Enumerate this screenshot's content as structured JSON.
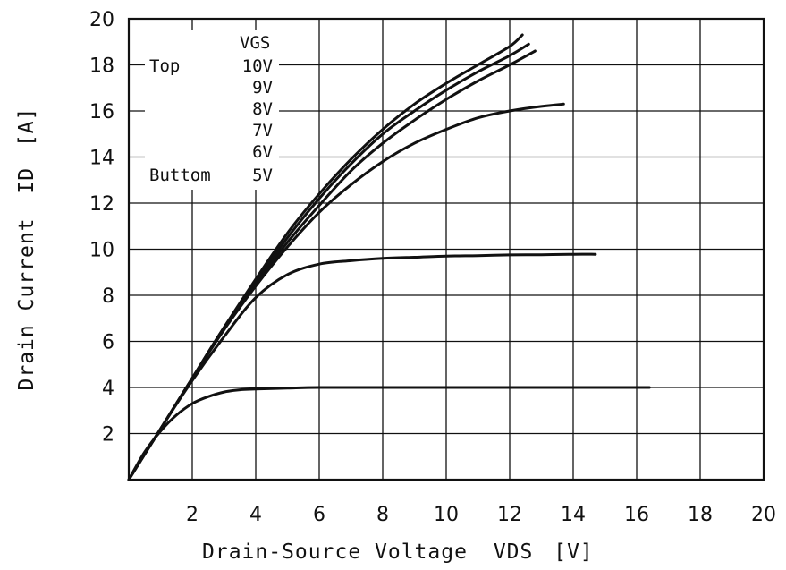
{
  "chart_data": {
    "type": "line",
    "title": "",
    "xlabel": "Drain-Source Voltage",
    "xlabel_sym": "VDS",
    "xlabel_unit": "[V]",
    "ylabel": "Drain Current",
    "ylabel_sym": "ID",
    "ylabel_unit": "[A]",
    "xlim": [
      0,
      20
    ],
    "ylim": [
      0,
      20
    ],
    "x_ticks": [
      2,
      4,
      6,
      8,
      10,
      12,
      14,
      16,
      18,
      20
    ],
    "y_ticks": [
      2,
      4,
      6,
      8,
      10,
      12,
      14,
      16,
      18,
      20
    ],
    "grid": true,
    "legend": {
      "placement": "top-left",
      "header": "VGS",
      "rows": [
        {
          "prefix": "Top",
          "value": "10V"
        },
        {
          "prefix": "",
          "value": "9V"
        },
        {
          "prefix": "",
          "value": "8V"
        },
        {
          "prefix": "",
          "value": "7V"
        },
        {
          "prefix": "",
          "value": "6V"
        },
        {
          "prefix": "Buttom",
          "value": "5V"
        }
      ]
    },
    "series": [
      {
        "points": [
          [
            0,
            0
          ],
          [
            1,
            2.2
          ],
          [
            2,
            4.4
          ],
          [
            3,
            6.6
          ],
          [
            4,
            8.7
          ],
          [
            5,
            10.7
          ],
          [
            6,
            12.4
          ],
          [
            7,
            13.9
          ],
          [
            8,
            15.2
          ],
          [
            9,
            16.3
          ],
          [
            10,
            17.2
          ],
          [
            11,
            18.0
          ],
          [
            12,
            18.8
          ],
          [
            12.4,
            19.3
          ]
        ]
      },
      {
        "points": [
          [
            0,
            0
          ],
          [
            1,
            2.2
          ],
          [
            2,
            4.4
          ],
          [
            3,
            6.6
          ],
          [
            4,
            8.6
          ],
          [
            5,
            10.5
          ],
          [
            6,
            12.2
          ],
          [
            7,
            13.7
          ],
          [
            8,
            15.0
          ],
          [
            9,
            16.0
          ],
          [
            10,
            16.9
          ],
          [
            11,
            17.7
          ],
          [
            12,
            18.4
          ],
          [
            12.6,
            18.9
          ]
        ]
      },
      {
        "points": [
          [
            0,
            0
          ],
          [
            1,
            2.2
          ],
          [
            2,
            4.4
          ],
          [
            3,
            6.6
          ],
          [
            4,
            8.5
          ],
          [
            5,
            10.3
          ],
          [
            6,
            11.9
          ],
          [
            7,
            13.4
          ],
          [
            8,
            14.6
          ],
          [
            9,
            15.6
          ],
          [
            10,
            16.5
          ],
          [
            11,
            17.3
          ],
          [
            12,
            18.0
          ],
          [
            12.8,
            18.6
          ]
        ]
      },
      {
        "points": [
          [
            0,
            0
          ],
          [
            1,
            2.2
          ],
          [
            2,
            4.4
          ],
          [
            3,
            6.5
          ],
          [
            4,
            8.4
          ],
          [
            5,
            10.1
          ],
          [
            6,
            11.6
          ],
          [
            7,
            12.8
          ],
          [
            8,
            13.8
          ],
          [
            9,
            14.6
          ],
          [
            10,
            15.2
          ],
          [
            11,
            15.7
          ],
          [
            12,
            16.0
          ],
          [
            13,
            16.2
          ],
          [
            13.7,
            16.3
          ]
        ]
      },
      {
        "points": [
          [
            0,
            0
          ],
          [
            1,
            2.2
          ],
          [
            2,
            4.3
          ],
          [
            3,
            6.2
          ],
          [
            4,
            7.9
          ],
          [
            5,
            8.9
          ],
          [
            6,
            9.35
          ],
          [
            7,
            9.5
          ],
          [
            8,
            9.6
          ],
          [
            9,
            9.65
          ],
          [
            10,
            9.7
          ],
          [
            11,
            9.72
          ],
          [
            12,
            9.75
          ],
          [
            13,
            9.76
          ],
          [
            14,
            9.78
          ],
          [
            14.7,
            9.78
          ]
        ]
      },
      {
        "points": [
          [
            0,
            0
          ],
          [
            0.5,
            1.2
          ],
          [
            1,
            2.1
          ],
          [
            1.5,
            2.8
          ],
          [
            2,
            3.3
          ],
          [
            2.5,
            3.6
          ],
          [
            3,
            3.8
          ],
          [
            3.5,
            3.9
          ],
          [
            4,
            3.93
          ],
          [
            5,
            3.97
          ],
          [
            6,
            4.0
          ],
          [
            8,
            4.0
          ],
          [
            10,
            4.0
          ],
          [
            12,
            4.0
          ],
          [
            14,
            4.0
          ],
          [
            16,
            4.0
          ],
          [
            16.4,
            4.0
          ]
        ]
      }
    ]
  }
}
